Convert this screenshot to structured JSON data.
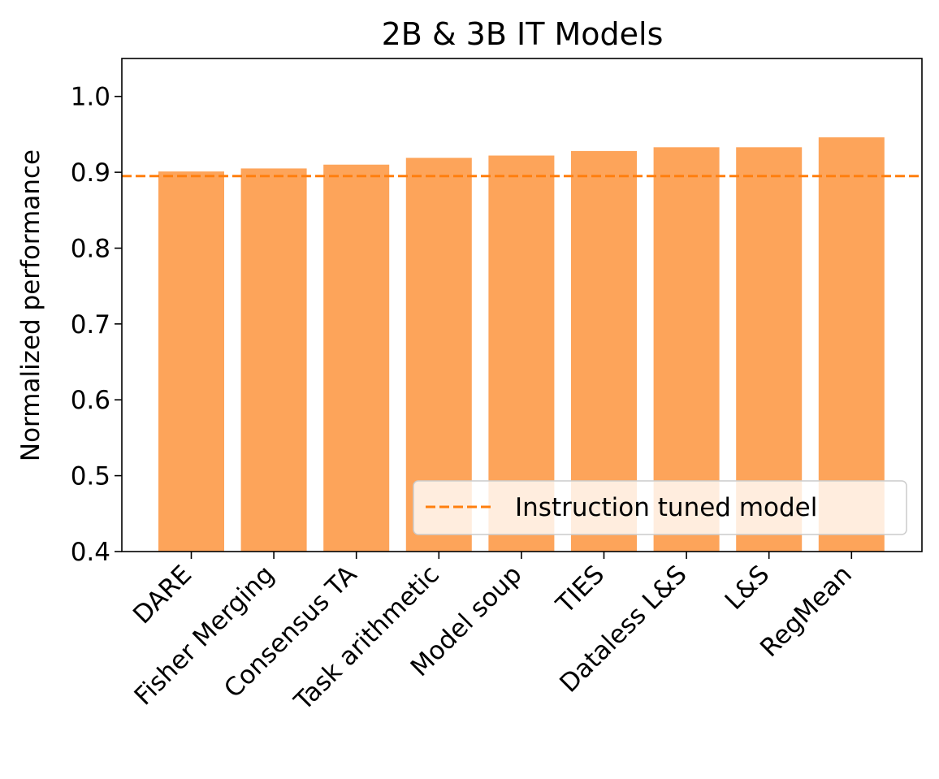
{
  "chart_data": {
    "type": "bar",
    "title": "2B & 3B IT Models",
    "xlabel": "",
    "ylabel": "Normalized performance",
    "categories": [
      "DARE",
      "Fisher Merging",
      "Consensus TA",
      "Task arithmetic",
      "Model soup",
      "TIES",
      "Dataless L&S",
      "L&S",
      "RegMean"
    ],
    "series": [
      {
        "values": [
          0.901,
          0.905,
          0.91,
          0.919,
          0.922,
          0.928,
          0.933,
          0.933,
          0.946
        ],
        "color": "#fda45a"
      }
    ],
    "reference_line": {
      "name": "Instruction tuned model",
      "value": 0.895,
      "color": "#ff7f0e",
      "style": "dashed"
    },
    "ylim": [
      0.4,
      1.05
    ],
    "yticks": [
      0.4,
      0.5,
      0.6,
      0.7,
      0.8,
      0.9,
      1.0
    ],
    "grid": false,
    "legend_position": "lower-right"
  }
}
